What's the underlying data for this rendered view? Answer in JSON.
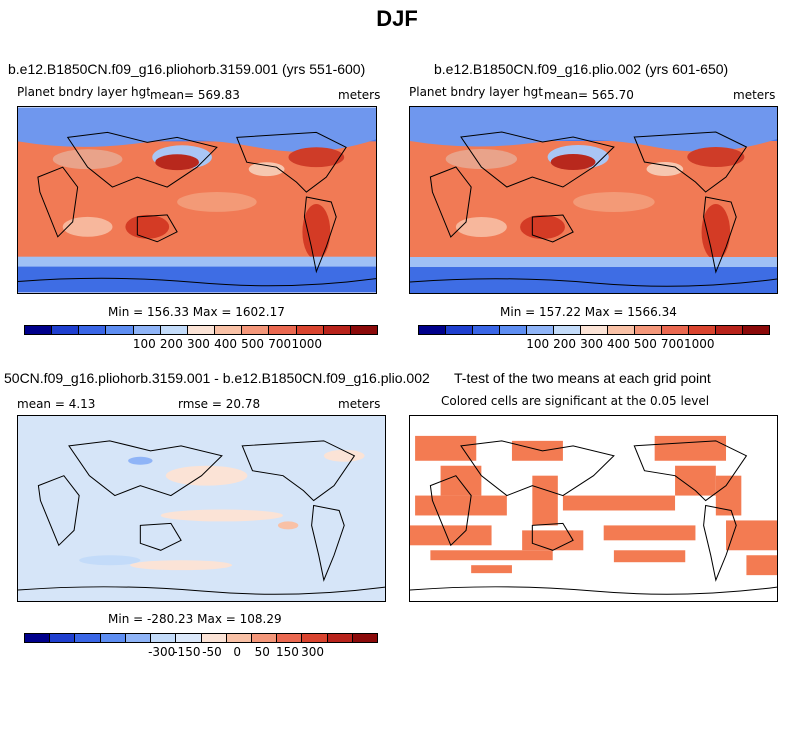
{
  "title": "DJF",
  "panels": {
    "p1": {
      "case": "b.e12.B1850CN.f09_g16.pliohorb.3159.001 (yrs 551-600)",
      "var_name": "Planet bndry layer hgt",
      "mean": "mean= 569.83",
      "units": "meters",
      "minmax": "Min = 156.33 Max = 1602.17"
    },
    "p2": {
      "case": "b.e12.B1850CN.f09_g16.plio.002 (yrs 601-650)",
      "var_name": "Planet bndry layer hgt",
      "mean": "mean= 565.70",
      "units": "meters",
      "minmax": "Min = 157.22 Max = 1566.34"
    },
    "p3": {
      "case": "50CN.f09_g16.pliohorb.3159.001 - b.e12.B1850CN.f09_g16.plio.002",
      "mean": "mean =   4.13",
      "rmse": "rmse =  20.78",
      "units": "meters",
      "minmax": "Min = -280.23 Max = 108.29"
    },
    "p4": {
      "case": "T-test of the two means at each grid point",
      "note": "Colored cells are significant at the 0.05 level"
    }
  },
  "colorbar_abs": {
    "colors": [
      "#00008b",
      "#1f3fcf",
      "#3a66e6",
      "#5e8ef2",
      "#8fb4f7",
      "#c3dbf9",
      "#fbe3d6",
      "#f9c1a6",
      "#f4977a",
      "#ea6850",
      "#d9442f",
      "#b8231b",
      "#8b0a0a"
    ],
    "labels": [
      "100",
      "200",
      "300",
      "400",
      "500",
      "700",
      "1000"
    ]
  },
  "colorbar_diff": {
    "colors": [
      "#00008b",
      "#1f3fcf",
      "#3a66e6",
      "#5e8ef2",
      "#8fb4f7",
      "#c3dbf9",
      "#dbe8fa",
      "#fbe3d6",
      "#f9c1a6",
      "#f4977a",
      "#ea6850",
      "#d9442f",
      "#b8231b",
      "#8b0a0a"
    ],
    "labels": [
      "-300",
      "-150",
      "-50",
      "0",
      "50",
      "150",
      "300"
    ]
  },
  "colors": {
    "warm_bg": "#f17a55",
    "cold_bg": "#3f6fe6",
    "diff_bg": "#d6e5f8",
    "sig": "#f37b52"
  }
}
